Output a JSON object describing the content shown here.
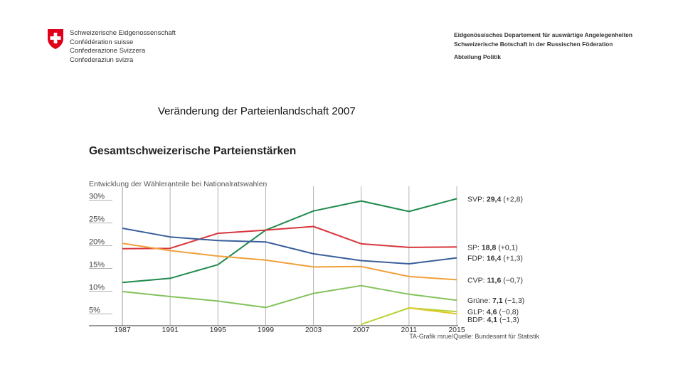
{
  "header": {
    "org_lines": [
      "Schweizerische Eidgenossenschaft",
      "Confédération suisse",
      "Confederazione Svizzera",
      "Confederaziun svizra"
    ],
    "dept_line1": "Eidgenössisches Departement für auswärtige Angelegenheiten",
    "dept_line2": "Schweizerische Botschaft in der Russischen Föderation",
    "division": "Abteilung Politik"
  },
  "slide": {
    "title": "Veränderung der Parteienlandschaft 2007"
  },
  "chart_data": {
    "type": "line",
    "title": "Gesamtschweizerische Parteienstärken",
    "subtitle": "Entwicklung der Wähleranteile bei Nationalratswahlen",
    "source": "TA-Grafik mrue/Quelle: Bundesamt für Statistik",
    "x": [
      1987,
      1991,
      1995,
      1999,
      2003,
      2007,
      2011,
      2015
    ],
    "x_tick_labels": [
      "1987",
      "1991",
      "1995",
      "1999",
      "2003",
      "2007",
      "2011",
      "2015"
    ],
    "y_tick_labels": [
      "30%",
      "25%",
      "20%",
      "15%",
      "10%",
      "5%"
    ],
    "y_ticks": [
      30,
      25,
      20,
      15,
      10,
      5
    ],
    "ylim": [
      1.5,
      31.5
    ],
    "grid": "vertical",
    "series": [
      {
        "name": "SVP",
        "color": "#1f8a4c",
        "values": [
          11.0,
          11.9,
          14.9,
          22.5,
          26.7,
          28.9,
          26.6,
          29.4
        ],
        "label": "SVP: 29,4 (+2,8)",
        "label_bold": "29,4",
        "label_rest": " (+2,8)"
      },
      {
        "name": "SP",
        "color": "#d8353c",
        "values": [
          18.4,
          18.5,
          21.8,
          22.5,
          23.3,
          19.5,
          18.7,
          18.8
        ],
        "label": "SP: 18,8 (+0,1)",
        "label_bold": "18,8",
        "label_rest": " (+0,1)"
      },
      {
        "name": "FDP",
        "color": "#3a5f9b",
        "values": [
          22.9,
          21.0,
          20.2,
          19.9,
          17.3,
          15.8,
          15.1,
          16.4
        ],
        "label": "FDP: 16,4 (+1,3)",
        "label_bold": "16,4",
        "label_rest": " (+1,3)"
      },
      {
        "name": "CVP",
        "color": "#f0a03a",
        "values": [
          19.6,
          18.0,
          16.8,
          15.9,
          14.4,
          14.5,
          12.3,
          11.6
        ],
        "label": "CVP: 11,6 (−0,7)",
        "label_bold": "11,6",
        "label_rest": " (−0,7)"
      },
      {
        "name": "Grüne",
        "color": "#84c25c",
        "values": [
          9.0,
          7.9,
          6.9,
          5.5,
          8.6,
          10.3,
          8.4,
          7.1
        ],
        "label": "Grüne: 7,1 (−1,3)",
        "label_bold": "7,1",
        "label_rest": " (−1,3)"
      },
      {
        "name": "GLP",
        "color": "#b5d334",
        "values": [
          null,
          null,
          null,
          null,
          null,
          1.8,
          5.4,
          4.6
        ],
        "label": "GLP: 4,6 (−0,8)",
        "label_bold": "4,6",
        "label_rest": " (−0,8)"
      },
      {
        "name": "BDP",
        "color": "#e0c82a",
        "values": [
          null,
          null,
          null,
          null,
          null,
          null,
          5.4,
          4.1
        ],
        "label": "BDP: 4,1 (−1,3)",
        "label_bold": "4,1",
        "label_rest": " (−1,3)"
      }
    ]
  }
}
